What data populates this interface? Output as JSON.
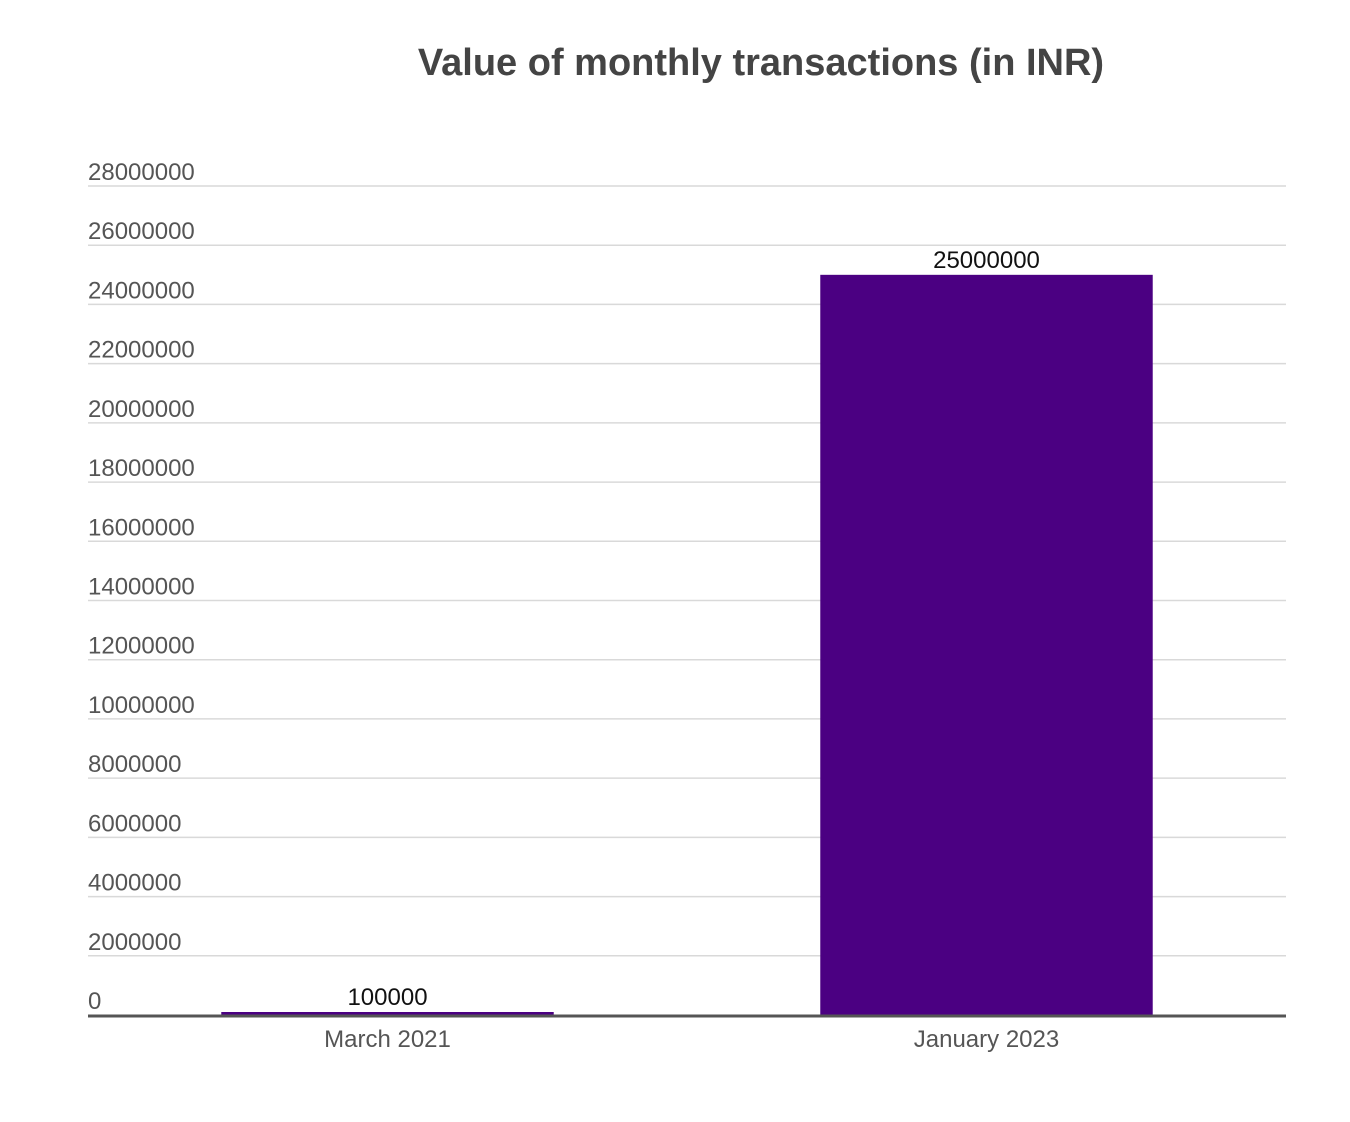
{
  "chart_data": {
    "type": "bar",
    "title": "Value of monthly transactions (in INR)",
    "xlabel": "",
    "ylabel": "",
    "categories": [
      "March 2021",
      "January 2023"
    ],
    "values": [
      100000,
      25000000
    ],
    "data_labels": [
      "100000",
      "25000000"
    ],
    "ylim": [
      0,
      28000000
    ],
    "yticks": [
      0,
      2000000,
      4000000,
      6000000,
      8000000,
      10000000,
      12000000,
      14000000,
      16000000,
      18000000,
      20000000,
      22000000,
      24000000,
      26000000,
      28000000
    ],
    "ytick_labels": [
      "0",
      "2000000",
      "4000000",
      "6000000",
      "8000000",
      "10000000",
      "12000000",
      "14000000",
      "16000000",
      "18000000",
      "20000000",
      "22000000",
      "24000000",
      "26000000",
      "28000000"
    ],
    "bar_color": "#4B0082",
    "grid": true,
    "legend": "none"
  }
}
